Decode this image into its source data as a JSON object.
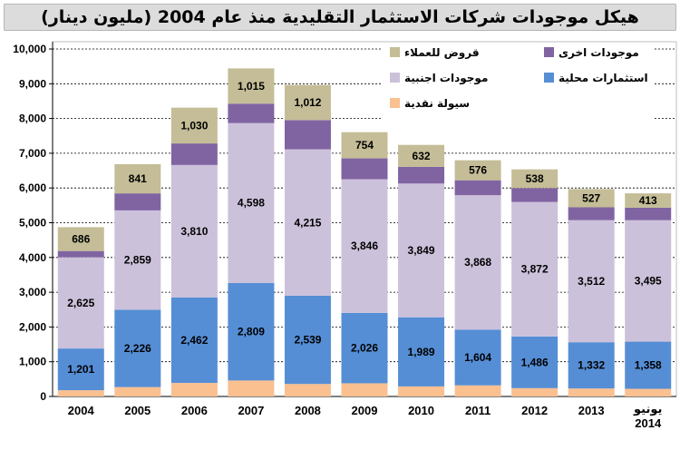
{
  "chart_data": {
    "type": "bar",
    "stacked": true,
    "title": "هيكل موجودات شركات الاستثمار التقليدية منذ عام 2004 (مليون دينار)",
    "categories": [
      [
        "2004"
      ],
      [
        "2005"
      ],
      [
        "2006"
      ],
      [
        "2007"
      ],
      [
        "2008"
      ],
      [
        "2009"
      ],
      [
        "2010"
      ],
      [
        "2011"
      ],
      [
        "2012"
      ],
      [
        "2013"
      ],
      [
        "يونيو",
        "2014"
      ]
    ],
    "ylim": [
      0,
      10000
    ],
    "yticks": [
      0,
      1000,
      2000,
      3000,
      4000,
      5000,
      6000,
      7000,
      8000,
      9000,
      10000
    ],
    "ytick_labels": [
      "0",
      "1,000",
      "2,000",
      "3,000",
      "4,000",
      "5,000",
      "6,000",
      "7,000",
      "8,000",
      "9,000",
      "10,000"
    ],
    "grid": true,
    "legend_position": "top",
    "series": [
      {
        "name": "سيولة نقدية",
        "color": "#fac090",
        "values": [
          180,
          270,
          390,
          460,
          360,
          380,
          290,
          320,
          240,
          230,
          220
        ],
        "labels": null
      },
      {
        "name": "استثمارات محلية",
        "color": "#558ed5",
        "values": [
          1201,
          2226,
          2462,
          2809,
          2539,
          2026,
          1989,
          1604,
          1486,
          1332,
          1358
        ],
        "labels": [
          "1,201",
          "2,226",
          "2,462",
          "2,809",
          "2,539",
          "2,026",
          "1,989",
          "1,604",
          "1,486",
          "1,332",
          "1,358"
        ]
      },
      {
        "name": "موجودات اجنبية",
        "color": "#ccc1da",
        "values": [
          2625,
          2859,
          3810,
          4598,
          4215,
          3846,
          3849,
          3868,
          3872,
          3512,
          3495
        ],
        "labels": [
          "2,625",
          "2,859",
          "3,810",
          "4,598",
          "4,215",
          "3,846",
          "3,849",
          "3,868",
          "3,872",
          "3,512",
          "3,495"
        ]
      },
      {
        "name": "موجودات اخرى",
        "color": "#8064a2",
        "values": [
          180,
          490,
          620,
          560,
          840,
          600,
          480,
          430,
          400,
          370,
          360
        ],
        "labels": null
      },
      {
        "name": "قروض للعملاء",
        "color": "#c4bd97",
        "values": [
          686,
          841,
          1030,
          1015,
          1012,
          754,
          632,
          576,
          538,
          527,
          413
        ],
        "labels": [
          "686",
          "841",
          "1,030",
          "1,015",
          "1,012",
          "754",
          "632",
          "576",
          "538",
          "527",
          "413"
        ]
      }
    ]
  }
}
